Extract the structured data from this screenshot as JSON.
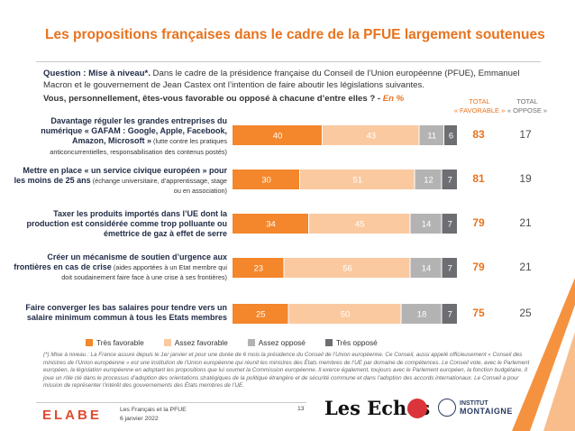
{
  "title": "Les propositions françaises dans le cadre de la PFUE largement soutenues",
  "question": {
    "label": "Question : Mise à niveau*.",
    "text": " Dans le cadre de la présidence française du Conseil de l’Union européenne (PFUE), Emmanuel Macron et le gouvernement de Jean Castex ont l’intention de faire aboutir les législations suivantes.",
    "sub": "Vous, personnellement, êtes-vous favorable ou opposé à chacune d’entre elles ? - ",
    "unit": "En %"
  },
  "columns": {
    "fav_line1": "TOTAL",
    "fav_line2": "« FAVORABLE »",
    "opp_line1": "TOTAL",
    "opp_line2": "« OPPOSE »"
  },
  "rows": [
    {
      "label_bold": "Davantage réguler les grandes entreprises du numérique « GAFAM : Google, Apple, Facebook, Amazon, Microsoft »",
      "detail": " (lutte contre les pratiques anticoncurrentielles, responsabilisation des contenus postés)",
      "total_fav": "83",
      "total_opp": "17"
    },
    {
      "label_bold": "Mettre en place « un service civique européen » pour les moins de 25 ans",
      "detail": " (échange universitaire, d’apprentissage, stage ou en association)",
      "total_fav": "81",
      "total_opp": "19"
    },
    {
      "label_bold": "Taxer les produits importés dans l’UE dont la production est considérée comme trop polluante ou émettrice de gaz à effet de serre",
      "detail": "",
      "total_fav": "79",
      "total_opp": "21"
    },
    {
      "label_bold": "Créer un mécanisme de soutien d’urgence aux frontières en cas de crise",
      "detail": " (aides apportées à un Etat membre qui doit soudainement faire face à une crise à ses frontières)",
      "total_fav": "79",
      "total_opp": "21"
    },
    {
      "label_bold": "Faire converger les bas salaires pour tendre vers un salaire minimum commun à tous les Etats membres",
      "detail": "",
      "total_fav": "75",
      "total_opp": "25"
    }
  ],
  "chart_data": {
    "type": "bar",
    "stacked": true,
    "orientation": "horizontal",
    "categories": [
      "Davantage réguler les grandes entreprises du numérique « GAFAM »",
      "Mettre en place « un service civique européen » pour les moins de 25 ans",
      "Taxer les produits importés dans l’UE dont la production est considérée comme trop polluante",
      "Créer un mécanisme de soutien d’urgence aux frontières en cas de crise",
      "Faire converger les bas salaires vers un salaire minimum commun"
    ],
    "series": [
      {
        "name": "Très favorable",
        "color": "#f4862b",
        "values": [
          40,
          30,
          34,
          23,
          25
        ]
      },
      {
        "name": "Assez favorable",
        "color": "#fbc9a0",
        "values": [
          43,
          51,
          45,
          56,
          50
        ]
      },
      {
        "name": "Assez opposé",
        "color": "#b3b3b3",
        "values": [
          11,
          12,
          14,
          14,
          18
        ]
      },
      {
        "name": "Très opposé",
        "color": "#6d6e71",
        "values": [
          6,
          7,
          7,
          7,
          7
        ]
      }
    ],
    "xlim": [
      0,
      100
    ],
    "legend_position": "bottom"
  },
  "footnote": "(*) Mise à niveau : La France assure depuis le 1er janvier et pour une durée de 6 mois la présidence du Conseil de l’Union européenne. Ce Conseil, aussi appelé officieusement « Conseil des ministres de l’Union européenne » est une institution de l’Union européenne qui réunit les ministres des États membres de l’UE par domaine de compétences. Le Conseil vote, avec le Parlement européen, la législation européenne en adoptant les propositions que lui soumet la Commission européenne. Il exerce également, toujours avec le Parlement européen, la fonction budgétaire. Il joue un rôle clé dans le processus d’adoption des orientations stratégiques de la politique étrangère et de sécurité commune et dans l’adoption des accords internationaux. Le Conseil a pour mission de représenter l’intérêt des gouvernements des États membres de l’UE.",
  "footer": {
    "brand": "ELABE",
    "source_line1": "Les Français et la PFUE",
    "source_line2": "6 janvier 2022",
    "page": "13",
    "partner1": "Les Echos",
    "partner3_line1": "INSTITUT",
    "partner3_line2": "MONTAIGNE"
  }
}
